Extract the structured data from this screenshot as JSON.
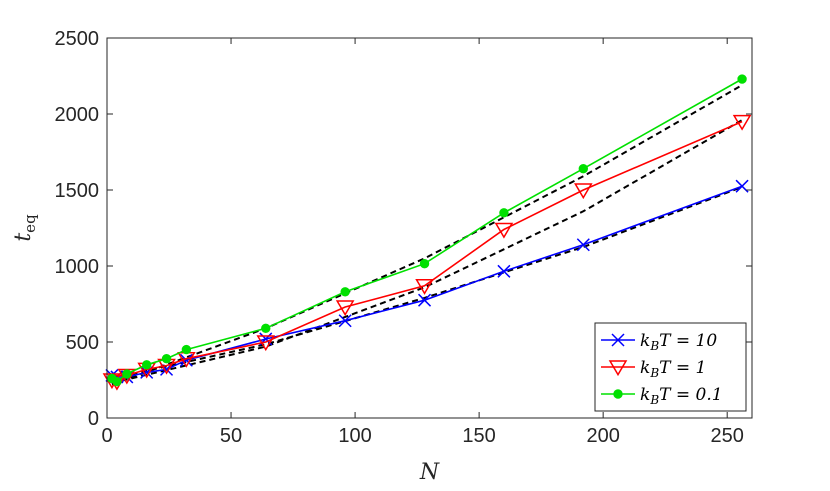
{
  "chart_data": {
    "type": "line",
    "title": "",
    "xlabel": "N",
    "ylabel": {
      "main": "t",
      "sub": "eq"
    },
    "xlim": [
      0,
      260
    ],
    "ylim": [
      0,
      2500
    ],
    "xticks": [
      0,
      50,
      100,
      150,
      200,
      250
    ],
    "yticks": [
      0,
      500,
      1000,
      1500,
      2000,
      2500
    ],
    "grid": false,
    "legend_position": "bottom-right",
    "series": [
      {
        "name": "k_B T = 10",
        "legend": {
          "k": "k",
          "sub": "B",
          "rest": "T = 10"
        },
        "color": "#0000ff",
        "marker": "x",
        "x": [
          2,
          4,
          8,
          16,
          24,
          32,
          64,
          96,
          128,
          160,
          192,
          256
        ],
        "y": [
          280,
          270,
          270,
          300,
          320,
          380,
          520,
          640,
          775,
          965,
          1140,
          1525
        ]
      },
      {
        "name": "k_B T = 1",
        "legend": {
          "k": "k",
          "sub": "B",
          "rest": "T = 1"
        },
        "color": "#ff0000",
        "marker": "triangle-down",
        "x": [
          2,
          4,
          8,
          16,
          24,
          32,
          64,
          96,
          128,
          160,
          192,
          256
        ],
        "y": [
          250,
          240,
          280,
          320,
          345,
          390,
          500,
          730,
          870,
          1240,
          1500,
          1950
        ]
      },
      {
        "name": "k_B T = 0.1",
        "legend": {
          "k": "k",
          "sub": "B",
          "rest": "T = 0.1"
        },
        "color": "#00e000",
        "marker": "dot",
        "x": [
          2,
          4,
          8,
          16,
          24,
          32,
          64,
          96,
          128,
          160,
          192,
          256
        ],
        "y": [
          260,
          240,
          290,
          350,
          390,
          450,
          590,
          830,
          1015,
          1350,
          1640,
          2230
        ]
      }
    ],
    "fits": [
      {
        "color": "#000000",
        "style": "dashed",
        "x": [
          2,
          64,
          128,
          192,
          256
        ],
        "y": [
          260,
          485,
          790,
          1125,
          1520
        ]
      },
      {
        "color": "#000000",
        "style": "dashed",
        "x": [
          2,
          64,
          128,
          192,
          256
        ],
        "y": [
          230,
          470,
          860,
          1360,
          1960
        ]
      },
      {
        "color": "#000000",
        "style": "dashed",
        "x": [
          2,
          64,
          128,
          192,
          256
        ],
        "y": [
          220,
          590,
          1050,
          1590,
          2190
        ]
      }
    ]
  }
}
